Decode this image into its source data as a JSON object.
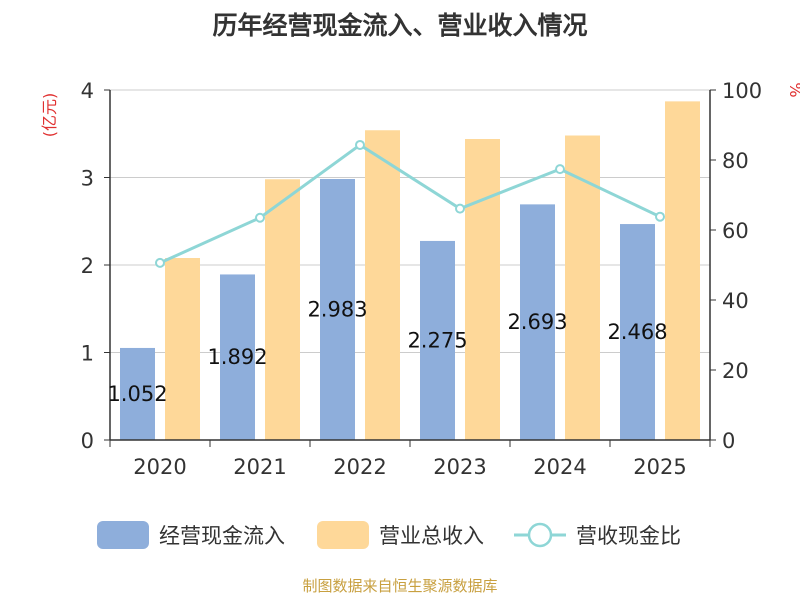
{
  "chart_data": {
    "type": "bar",
    "title": "历年经营现金流入、营业收入情况",
    "categories": [
      "2020",
      "2021",
      "2022",
      "2023",
      "2024",
      "2025"
    ],
    "series": [
      {
        "name": "经营现金流入",
        "kind": "bar",
        "axis": "left",
        "color": "#8eaedb",
        "values": [
          1.052,
          1.892,
          2.983,
          2.275,
          2.693,
          2.468
        ],
        "data_labels": [
          "1.052",
          "1.892",
          "2.983",
          "2.275",
          "2.693",
          "2.468"
        ]
      },
      {
        "name": "营业总收入",
        "kind": "bar",
        "axis": "left",
        "color": "#fed899",
        "values": [
          2.08,
          2.98,
          3.54,
          3.44,
          3.48,
          3.87
        ]
      },
      {
        "name": "营收现金比",
        "kind": "line",
        "axis": "right",
        "color": "#8ed6d6",
        "values": [
          50.6,
          63.5,
          84.3,
          66.1,
          77.4,
          63.8
        ]
      }
    ],
    "y_left": {
      "label": "(亿元)",
      "ylim": [
        0,
        4
      ],
      "ticks": [
        "0",
        "1",
        "2",
        "3",
        "4"
      ]
    },
    "y_right": {
      "label": "%",
      "ylim": [
        0,
        100
      ],
      "ticks": [
        "0",
        "20",
        "40",
        "60",
        "80",
        "100"
      ]
    },
    "grid": true,
    "legend_position": "bottom"
  },
  "source": "制图数据来自恒生聚源数据库",
  "colors": {
    "axis": "#333333",
    "grid": "#cccccc",
    "unit_label": "#e03030",
    "source": "#c8a040"
  }
}
